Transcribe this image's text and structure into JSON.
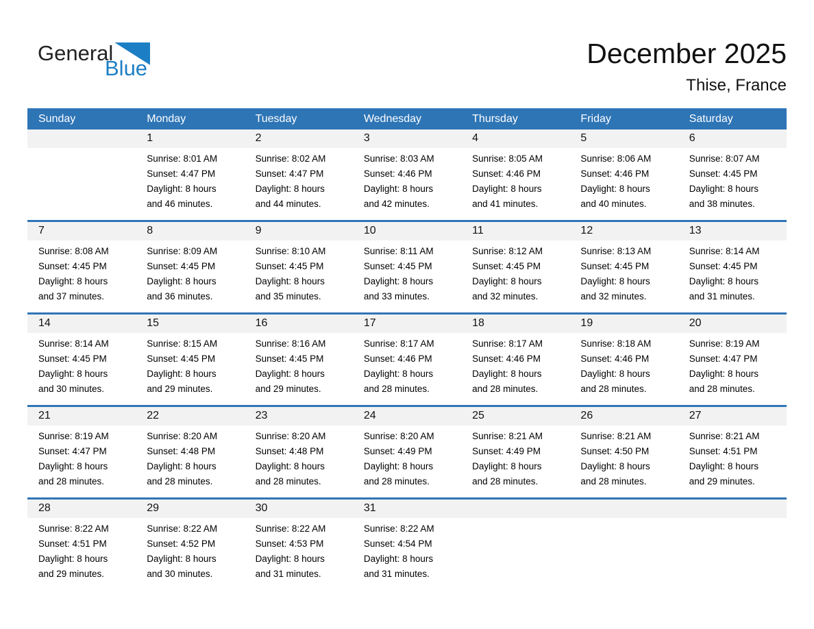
{
  "logo": {
    "word_general": "General",
    "word_blue": "Blue"
  },
  "title": "December 2025",
  "location": "Thise, France",
  "weekday_headers": [
    "Sunday",
    "Monday",
    "Tuesday",
    "Wednesday",
    "Thursday",
    "Friday",
    "Saturday"
  ],
  "colors": {
    "header_bg": "#2E75B6",
    "row_divider": "#2E75B6",
    "day_band_bg": "#F2F2F2",
    "logo_blue": "#1C7FC5",
    "header_text": "#FFFFFF"
  },
  "weeks": [
    [
      {
        "day": "",
        "lines": []
      },
      {
        "day": "1",
        "lines": [
          "Sunrise: 8:01 AM",
          "Sunset: 4:47 PM",
          "Daylight: 8 hours",
          "and 46 minutes."
        ]
      },
      {
        "day": "2",
        "lines": [
          "Sunrise: 8:02 AM",
          "Sunset: 4:47 PM",
          "Daylight: 8 hours",
          "and 44 minutes."
        ]
      },
      {
        "day": "3",
        "lines": [
          "Sunrise: 8:03 AM",
          "Sunset: 4:46 PM",
          "Daylight: 8 hours",
          "and 42 minutes."
        ]
      },
      {
        "day": "4",
        "lines": [
          "Sunrise: 8:05 AM",
          "Sunset: 4:46 PM",
          "Daylight: 8 hours",
          "and 41 minutes."
        ]
      },
      {
        "day": "5",
        "lines": [
          "Sunrise: 8:06 AM",
          "Sunset: 4:46 PM",
          "Daylight: 8 hours",
          "and 40 minutes."
        ]
      },
      {
        "day": "6",
        "lines": [
          "Sunrise: 8:07 AM",
          "Sunset: 4:45 PM",
          "Daylight: 8 hours",
          "and 38 minutes."
        ]
      }
    ],
    [
      {
        "day": "7",
        "lines": [
          "Sunrise: 8:08 AM",
          "Sunset: 4:45 PM",
          "Daylight: 8 hours",
          "and 37 minutes."
        ]
      },
      {
        "day": "8",
        "lines": [
          "Sunrise: 8:09 AM",
          "Sunset: 4:45 PM",
          "Daylight: 8 hours",
          "and 36 minutes."
        ]
      },
      {
        "day": "9",
        "lines": [
          "Sunrise: 8:10 AM",
          "Sunset: 4:45 PM",
          "Daylight: 8 hours",
          "and 35 minutes."
        ]
      },
      {
        "day": "10",
        "lines": [
          "Sunrise: 8:11 AM",
          "Sunset: 4:45 PM",
          "Daylight: 8 hours",
          "and 33 minutes."
        ]
      },
      {
        "day": "11",
        "lines": [
          "Sunrise: 8:12 AM",
          "Sunset: 4:45 PM",
          "Daylight: 8 hours",
          "and 32 minutes."
        ]
      },
      {
        "day": "12",
        "lines": [
          "Sunrise: 8:13 AM",
          "Sunset: 4:45 PM",
          "Daylight: 8 hours",
          "and 32 minutes."
        ]
      },
      {
        "day": "13",
        "lines": [
          "Sunrise: 8:14 AM",
          "Sunset: 4:45 PM",
          "Daylight: 8 hours",
          "and 31 minutes."
        ]
      }
    ],
    [
      {
        "day": "14",
        "lines": [
          "Sunrise: 8:14 AM",
          "Sunset: 4:45 PM",
          "Daylight: 8 hours",
          "and 30 minutes."
        ]
      },
      {
        "day": "15",
        "lines": [
          "Sunrise: 8:15 AM",
          "Sunset: 4:45 PM",
          "Daylight: 8 hours",
          "and 29 minutes."
        ]
      },
      {
        "day": "16",
        "lines": [
          "Sunrise: 8:16 AM",
          "Sunset: 4:45 PM",
          "Daylight: 8 hours",
          "and 29 minutes."
        ]
      },
      {
        "day": "17",
        "lines": [
          "Sunrise: 8:17 AM",
          "Sunset: 4:46 PM",
          "Daylight: 8 hours",
          "and 28 minutes."
        ]
      },
      {
        "day": "18",
        "lines": [
          "Sunrise: 8:17 AM",
          "Sunset: 4:46 PM",
          "Daylight: 8 hours",
          "and 28 minutes."
        ]
      },
      {
        "day": "19",
        "lines": [
          "Sunrise: 8:18 AM",
          "Sunset: 4:46 PM",
          "Daylight: 8 hours",
          "and 28 minutes."
        ]
      },
      {
        "day": "20",
        "lines": [
          "Sunrise: 8:19 AM",
          "Sunset: 4:47 PM",
          "Daylight: 8 hours",
          "and 28 minutes."
        ]
      }
    ],
    [
      {
        "day": "21",
        "lines": [
          "Sunrise: 8:19 AM",
          "Sunset: 4:47 PM",
          "Daylight: 8 hours",
          "and 28 minutes."
        ]
      },
      {
        "day": "22",
        "lines": [
          "Sunrise: 8:20 AM",
          "Sunset: 4:48 PM",
          "Daylight: 8 hours",
          "and 28 minutes."
        ]
      },
      {
        "day": "23",
        "lines": [
          "Sunrise: 8:20 AM",
          "Sunset: 4:48 PM",
          "Daylight: 8 hours",
          "and 28 minutes."
        ]
      },
      {
        "day": "24",
        "lines": [
          "Sunrise: 8:20 AM",
          "Sunset: 4:49 PM",
          "Daylight: 8 hours",
          "and 28 minutes."
        ]
      },
      {
        "day": "25",
        "lines": [
          "Sunrise: 8:21 AM",
          "Sunset: 4:49 PM",
          "Daylight: 8 hours",
          "and 28 minutes."
        ]
      },
      {
        "day": "26",
        "lines": [
          "Sunrise: 8:21 AM",
          "Sunset: 4:50 PM",
          "Daylight: 8 hours",
          "and 28 minutes."
        ]
      },
      {
        "day": "27",
        "lines": [
          "Sunrise: 8:21 AM",
          "Sunset: 4:51 PM",
          "Daylight: 8 hours",
          "and 29 minutes."
        ]
      }
    ],
    [
      {
        "day": "28",
        "lines": [
          "Sunrise: 8:22 AM",
          "Sunset: 4:51 PM",
          "Daylight: 8 hours",
          "and 29 minutes."
        ]
      },
      {
        "day": "29",
        "lines": [
          "Sunrise: 8:22 AM",
          "Sunset: 4:52 PM",
          "Daylight: 8 hours",
          "and 30 minutes."
        ]
      },
      {
        "day": "30",
        "lines": [
          "Sunrise: 8:22 AM",
          "Sunset: 4:53 PM",
          "Daylight: 8 hours",
          "and 31 minutes."
        ]
      },
      {
        "day": "31",
        "lines": [
          "Sunrise: 8:22 AM",
          "Sunset: 4:54 PM",
          "Daylight: 8 hours",
          "and 31 minutes."
        ]
      },
      {
        "day": "",
        "lines": []
      },
      {
        "day": "",
        "lines": []
      },
      {
        "day": "",
        "lines": []
      }
    ]
  ]
}
